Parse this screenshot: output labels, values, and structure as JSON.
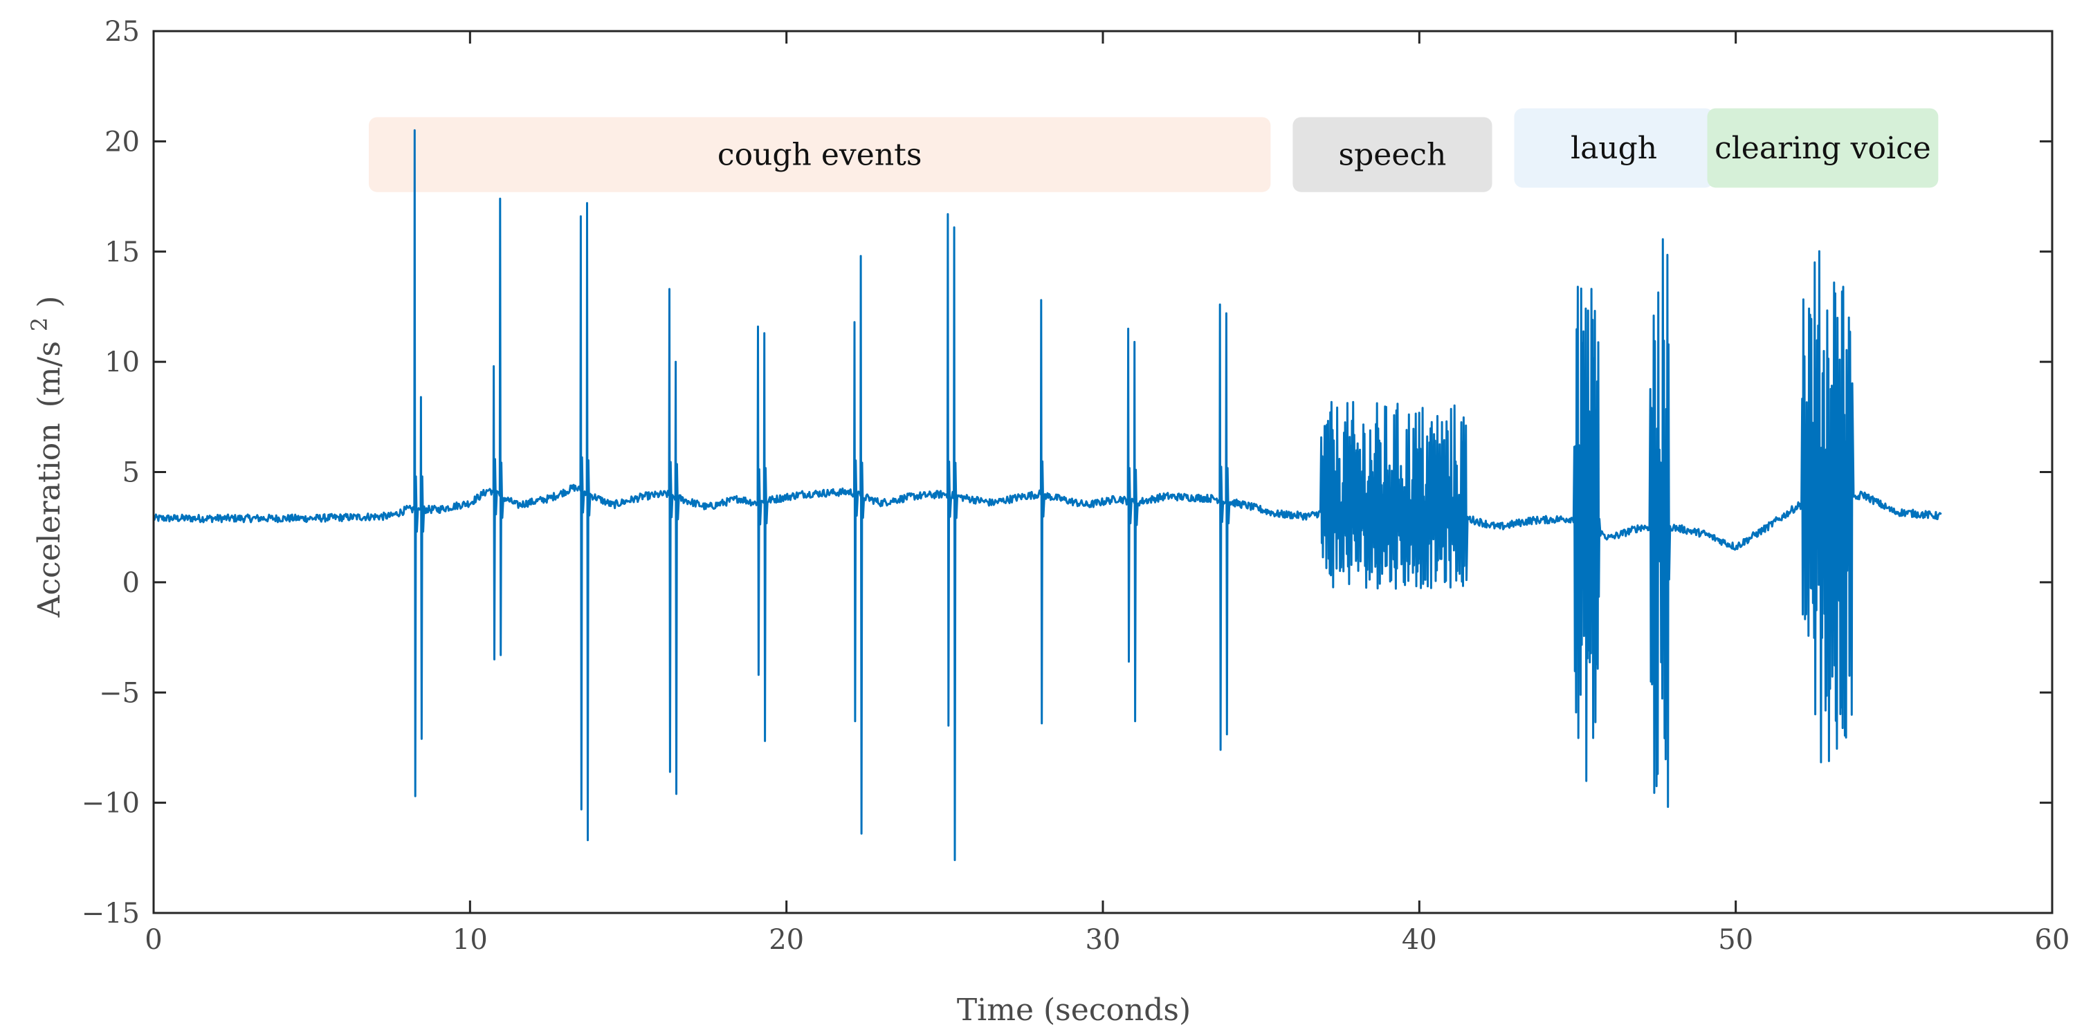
{
  "chart_data": {
    "type": "line",
    "title": "",
    "xlabel": "Time (seconds)",
    "ylabel": "Acceleration",
    "ylabel_unit": "(m/s",
    "ylabel_unit_sup": "2",
    "ylabel_unit_close": ")",
    "xlim": [
      0,
      60
    ],
    "ylim": [
      -15,
      25
    ],
    "xticks": [
      0,
      10,
      20,
      30,
      40,
      50,
      60
    ],
    "xtick_labels": [
      "0",
      "10",
      "20",
      "30",
      "40",
      "50",
      "60"
    ],
    "yticks": [
      -15,
      -10,
      -5,
      0,
      5,
      10,
      15,
      20,
      25
    ],
    "ytick_labels": [
      "−15",
      "−10",
      "−5",
      "0",
      "5",
      "10",
      "15",
      "20",
      "25"
    ],
    "grid": false,
    "series_color": "#0072BD",
    "annotations": [
      {
        "label": "cough events",
        "x_start": 6.8,
        "x_end": 35.3,
        "y_low": 17.7,
        "y_high": 21.1,
        "color": "#fdeee6"
      },
      {
        "label": "speech",
        "x_start": 36.0,
        "x_end": 42.3,
        "y_low": 17.7,
        "y_high": 21.1,
        "color": "#e3e3e3"
      },
      {
        "label": "laugh",
        "x_start": 43.0,
        "x_end": 49.3,
        "y_low": 17.9,
        "y_high": 21.5,
        "color": "#eaf3fb"
      },
      {
        "label": "clearing  voice",
        "x_start": 49.1,
        "x_end": 56.4,
        "y_low": 17.9,
        "y_high": 21.5,
        "color": "#d6f0d8"
      }
    ],
    "baseline": [
      [
        0,
        2.9
      ],
      [
        5,
        2.9
      ],
      [
        7.5,
        3.0
      ],
      [
        8.0,
        3.3
      ],
      [
        9.0,
        3.3
      ],
      [
        10.0,
        3.6
      ],
      [
        10.6,
        4.2
      ],
      [
        11.5,
        3.5
      ],
      [
        12.5,
        3.8
      ],
      [
        13.3,
        4.3
      ],
      [
        14.5,
        3.5
      ],
      [
        15.5,
        3.9
      ],
      [
        16.2,
        4.0
      ],
      [
        17.5,
        3.4
      ],
      [
        18.5,
        3.8
      ],
      [
        19.0,
        3.6
      ],
      [
        20.5,
        4.0
      ],
      [
        22.0,
        4.1
      ],
      [
        23.0,
        3.6
      ],
      [
        24.0,
        3.9
      ],
      [
        25.0,
        4.0
      ],
      [
        26.5,
        3.6
      ],
      [
        27.5,
        3.9
      ],
      [
        28.0,
        4.0
      ],
      [
        29.5,
        3.5
      ],
      [
        30.5,
        3.8
      ],
      [
        31.0,
        3.6
      ],
      [
        32.0,
        3.9
      ],
      [
        33.5,
        3.8
      ],
      [
        34.5,
        3.5
      ],
      [
        35.5,
        3.1
      ],
      [
        36.5,
        3.0
      ],
      [
        37.0,
        3.2
      ],
      [
        41.5,
        2.9
      ],
      [
        42.5,
        2.5
      ],
      [
        43.5,
        2.8
      ],
      [
        45.0,
        2.9
      ],
      [
        46.0,
        2.0
      ],
      [
        47.0,
        2.5
      ],
      [
        48.0,
        2.5
      ],
      [
        49.0,
        2.2
      ],
      [
        50.0,
        1.6
      ],
      [
        51.0,
        2.5
      ],
      [
        52.0,
        3.5
      ],
      [
        53.5,
        3.5
      ],
      [
        54.0,
        4.0
      ],
      [
        55.0,
        3.2
      ],
      [
        56.5,
        3.0
      ]
    ],
    "spikes": [
      {
        "x": 8.25,
        "max": 20.5,
        "min": -9.7
      },
      {
        "x": 8.45,
        "max": 8.4,
        "min": -7.1
      },
      {
        "x": 10.75,
        "max": 9.8,
        "min": -3.5
      },
      {
        "x": 10.95,
        "max": 17.4,
        "min": -3.3
      },
      {
        "x": 13.5,
        "max": 16.6,
        "min": -10.3
      },
      {
        "x": 13.7,
        "max": 17.2,
        "min": -11.7
      },
      {
        "x": 16.3,
        "max": 13.3,
        "min": -8.6
      },
      {
        "x": 16.5,
        "max": 10.0,
        "min": -9.6
      },
      {
        "x": 19.1,
        "max": 11.6,
        "min": -4.2
      },
      {
        "x": 19.3,
        "max": 11.3,
        "min": -7.2
      },
      {
        "x": 22.15,
        "max": 11.8,
        "min": -6.3
      },
      {
        "x": 22.35,
        "max": 14.8,
        "min": -11.4
      },
      {
        "x": 25.1,
        "max": 16.7,
        "min": -6.5
      },
      {
        "x": 25.3,
        "max": 16.1,
        "min": -12.6
      },
      {
        "x": 28.05,
        "max": 12.8,
        "min": -6.4
      },
      {
        "x": 30.8,
        "max": 11.5,
        "min": -3.6
      },
      {
        "x": 31.0,
        "max": 10.9,
        "min": -6.3
      },
      {
        "x": 33.7,
        "max": 12.6,
        "min": -7.6
      },
      {
        "x": 33.9,
        "max": 12.2,
        "min": -6.9
      }
    ],
    "bursts": [
      {
        "x_start": 36.9,
        "x_end": 41.5,
        "max": 8.2,
        "min": -0.3
      },
      {
        "x_start": 44.9,
        "x_end": 45.7,
        "max": 14.0,
        "min": -9.2
      },
      {
        "x_start": 47.3,
        "x_end": 47.9,
        "max": 15.6,
        "min": -10.5
      },
      {
        "x_start": 52.1,
        "x_end": 53.7,
        "max": 15.2,
        "min": -8.2
      }
    ]
  }
}
